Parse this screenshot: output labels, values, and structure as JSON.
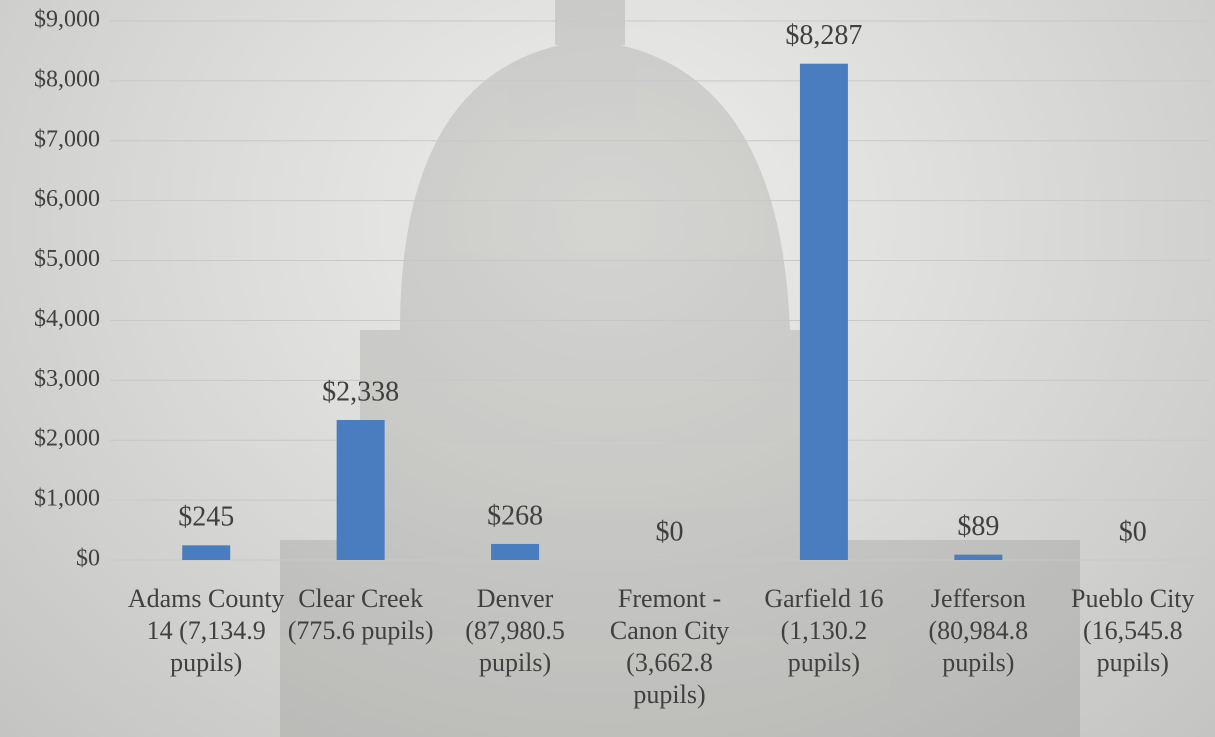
{
  "chart_data": {
    "type": "bar",
    "categories": [
      "Adams County 14 (7,134.9 pupils)",
      "Clear Creek (775.6 pupils)",
      "Denver (87,980.5 pupils)",
      "Fremont - Canon City (3,662.8 pupils)",
      "Garfield 16 (1,130.2 pupils)",
      "Jefferson (80,984.8 pupils)",
      "Pueblo City (16,545.8 pupils)"
    ],
    "values": [
      245,
      2338,
      268,
      0,
      8287,
      89,
      0
    ],
    "value_labels": [
      "$245",
      "$2,338",
      "$268",
      "$0",
      "$8,287",
      "$89",
      "$0"
    ],
    "color": "#4a7dbf",
    "ylim": [
      0,
      9000
    ],
    "yticks": [
      {
        "value": 0,
        "label": "$0"
      },
      {
        "value": 1000,
        "label": "$1,000"
      },
      {
        "value": 2000,
        "label": "$2,000"
      },
      {
        "value": 3000,
        "label": "$3,000"
      },
      {
        "value": 4000,
        "label": "$4,000"
      },
      {
        "value": 5000,
        "label": "$5,000"
      },
      {
        "value": 6000,
        "label": "$6,000"
      },
      {
        "value": 7000,
        "label": "$7,000"
      },
      {
        "value": 8000,
        "label": "$8,000"
      },
      {
        "value": 9000,
        "label": "$9,000"
      }
    ],
    "grid": true
  }
}
